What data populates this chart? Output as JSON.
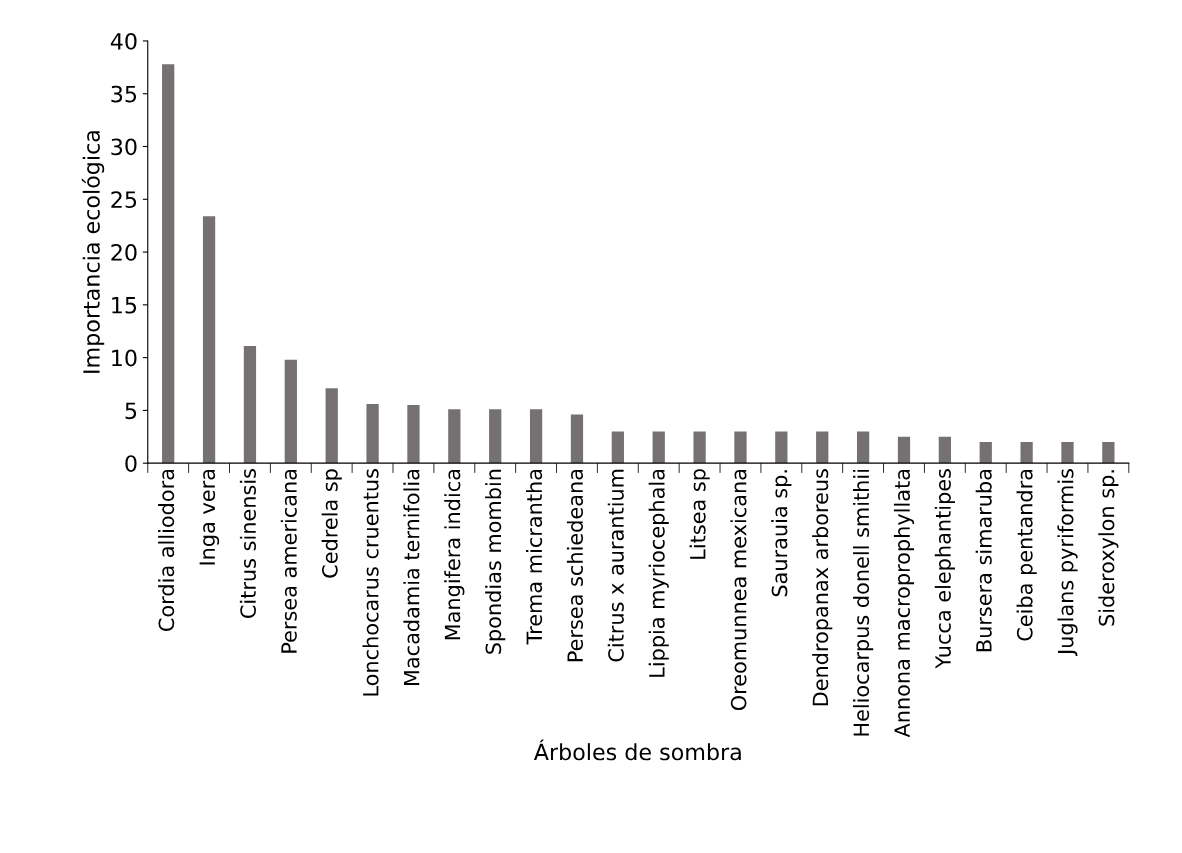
{
  "chart_data": {
    "type": "bar",
    "xlabel": "Árboles de sombra",
    "ylabel": "Importancia ecológica",
    "categories": [
      "Cordia alliodora",
      "Inga vera",
      "Citrus sinensis",
      "Persea americana",
      "Cedrela sp",
      "Lonchocarus cruentus",
      "Macadamia ternifolia",
      "Mangifera indica",
      "Spondias mombin",
      "Trema micrantha",
      "Persea schiedeana",
      "Citrus x aurantium",
      "Lippia myriocephala",
      "Litsea sp",
      "Oreomunnea mexicana",
      "Saurauia sp.",
      "Dendropanax arboreus",
      "Heliocarpus donell smithii",
      "Annona macroprophyllata",
      "Yucca elephantipes",
      "Bursera simaruba",
      "Ceiba pentandra",
      "Juglans pyriformis",
      "Sideroxylon sp."
    ],
    "values": [
      37.8,
      23.4,
      11.1,
      9.8,
      7.1,
      5.6,
      5.5,
      5.1,
      5.1,
      5.1,
      4.6,
      3.0,
      3.0,
      3.0,
      3.0,
      3.0,
      3.0,
      3.0,
      2.5,
      2.5,
      2.0,
      2.0,
      2.0,
      2.0
    ],
    "color": "#767171",
    "ylim": [
      0,
      40
    ],
    "yticks": [
      0,
      5,
      10,
      15,
      20,
      25,
      30,
      35,
      40
    ],
    "grid": false,
    "legend": false
  }
}
